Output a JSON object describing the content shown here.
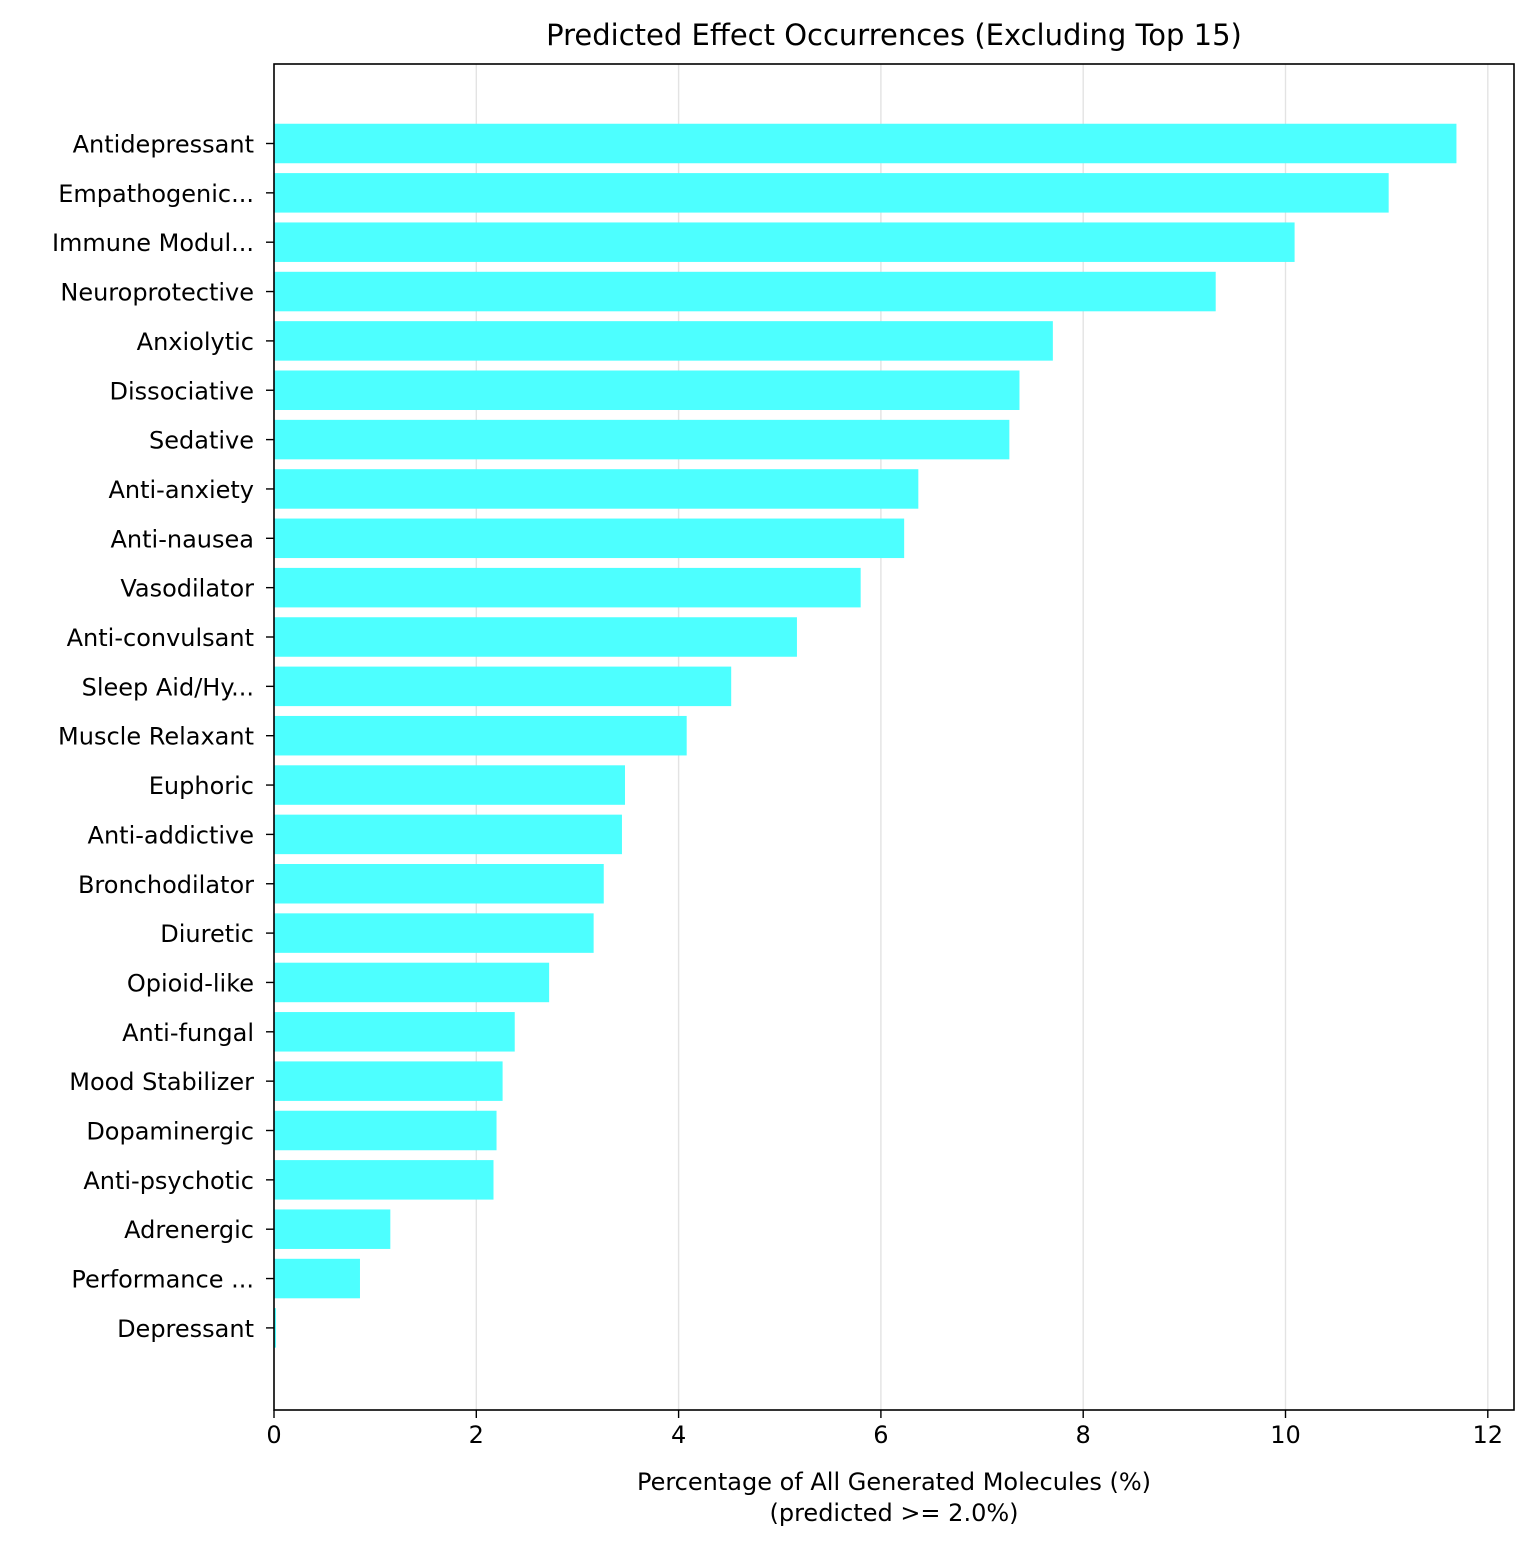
{
  "chart_data": {
    "type": "bar",
    "orientation": "horizontal",
    "title": "Predicted Effect Occurrences (Excluding Top 15)",
    "xlabel_line1": "Percentage of All Generated Molecules (%)",
    "xlabel_line2": "(predicted >= 2.0%)",
    "ylabel": "",
    "categories": [
      "Antidepressant",
      "Empathogenic...",
      "Immune Modul...",
      "Neuroprotective",
      "Anxiolytic",
      "Dissociative",
      "Sedative",
      "Anti-anxiety",
      "Anti-nausea",
      "Vasodilator",
      "Anti-convulsant",
      "Sleep Aid/Hy...",
      "Muscle Relaxant",
      "Euphoric",
      "Anti-addictive",
      "Bronchodilator",
      "Diuretic",
      "Opioid-like",
      "Anti-fungal",
      "Mood Stabilizer",
      "Dopaminergic",
      "Anti-psychotic",
      "Adrenergic",
      "Performance ...",
      "Depressant"
    ],
    "values": [
      11.69,
      11.02,
      10.09,
      9.31,
      7.7,
      7.37,
      7.27,
      6.37,
      6.23,
      5.8,
      5.17,
      4.52,
      4.08,
      3.47,
      3.44,
      3.26,
      3.16,
      2.72,
      2.38,
      2.26,
      2.2,
      2.17,
      1.15,
      0.85,
      0.02
    ],
    "xlim": [
      0,
      12.25
    ],
    "xticks": [
      0,
      2,
      4,
      6,
      8,
      10,
      12
    ],
    "xtick_labels": [
      "0",
      "2",
      "4",
      "6",
      "8",
      "10",
      "12"
    ],
    "grid": "vertical",
    "bar_color": "#4dffff"
  }
}
